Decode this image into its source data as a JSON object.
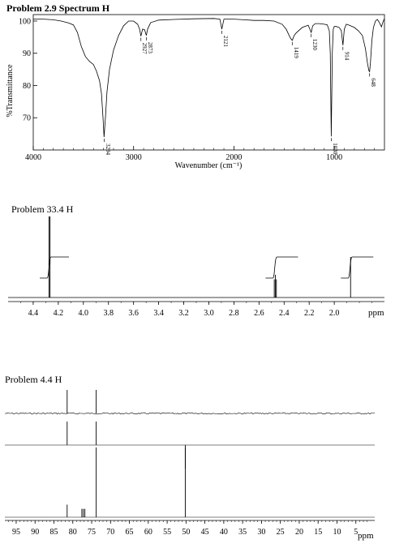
{
  "chart_data": [
    {
      "type": "line",
      "title": "Problem 2.9 Spectrum H",
      "xlabel": "Wavenumber (cm⁻¹)",
      "ylabel": "%Transmittance",
      "xlim": [
        4000,
        500
      ],
      "ylim": [
        60,
        102
      ],
      "x_ticks": [
        4000,
        3000,
        2000,
        1000
      ],
      "y_ticks": [
        100,
        90,
        80,
        70
      ],
      "grid": false,
      "series": [
        {
          "x": [
            4000,
            3900,
            3800,
            3720,
            3650,
            3600,
            3560,
            3520,
            3480,
            3440,
            3400,
            3370,
            3340,
            3320,
            3305,
            3294,
            3280,
            3265,
            3240,
            3200,
            3150,
            3100,
            3050,
            3000,
            2960,
            2940,
            2927,
            2910,
            2890,
            2873,
            2860,
            2830,
            2750,
            2600,
            2400,
            2200,
            2140,
            2121,
            2100,
            2000,
            1900,
            1800,
            1700,
            1600,
            1520,
            1480,
            1450,
            1435,
            1419,
            1400,
            1380,
            1320,
            1260,
            1240,
            1230,
            1215,
            1190,
            1150,
            1100,
            1070,
            1050,
            1040,
            1030,
            1020,
            1010,
            1000,
            980,
            950,
            930,
            914,
            900,
            880,
            850,
            800,
            760,
            720,
            690,
            670,
            655,
            648,
            640,
            625,
            610,
            590,
            570,
            550,
            530,
            520,
            505,
            500
          ],
          "y": [
            100.6,
            100.6,
            100.4,
            100.0,
            99.4,
            98.8,
            96.5,
            92,
            89,
            87.5,
            86.5,
            84.5,
            81.5,
            77.5,
            70,
            64,
            70.5,
            78,
            85,
            91,
            95.5,
            98.5,
            100,
            100,
            99,
            97.5,
            95.3,
            97.5,
            97.3,
            95.5,
            97.5,
            99.5,
            100.3,
            100.5,
            100.7,
            100.8,
            100.6,
            97.5,
            100.6,
            100.6,
            100.4,
            100.2,
            100.2,
            100,
            99,
            97.5,
            95.5,
            94.6,
            94.0,
            95.5,
            96.3,
            98,
            98.7,
            97.2,
            96.5,
            98.5,
            99.2,
            99.2,
            99,
            98.8,
            97,
            90,
            64.2,
            90,
            97.5,
            98.3,
            98.3,
            98,
            97,
            92.5,
            97.5,
            99,
            98.7,
            98,
            97,
            95.5,
            91.5,
            87,
            84.6,
            84.3,
            87,
            94,
            98,
            100,
            100.5,
            99.5,
            98.2,
            99.2,
            100.5,
            100.6
          ]
        }
      ],
      "annotations": [
        "3294",
        "2927",
        "2873",
        "2121",
        "1419",
        "1230",
        "1030",
        "914",
        "648"
      ]
    },
    {
      "type": "line",
      "title": "Problem 33.4 H",
      "xlabel": "ppm",
      "xlim": [
        4.6,
        1.6
      ],
      "x_ticks": [
        4.4,
        4.2,
        4.0,
        3.8,
        3.6,
        3.4,
        3.2,
        3.0,
        2.8,
        2.6,
        2.4,
        2.2,
        2.0
      ],
      "peaks": [
        {
          "ppm": 4.27,
          "multiplicity": "d",
          "integral": 2
        },
        {
          "ppm": 2.47,
          "multiplicity": "t",
          "integral": 1
        },
        {
          "ppm": 1.87,
          "multiplicity": "s",
          "integral": 1
        }
      ]
    },
    {
      "type": "line",
      "title": "Problem 4.4 H",
      "xlabel": "ppm",
      "xlim": [
        98,
        0
      ],
      "x_ticks": [
        95,
        90,
        85,
        80,
        75,
        70,
        65,
        60,
        55,
        50,
        45,
        40,
        35,
        30,
        25,
        20,
        15,
        10,
        5
      ],
      "spectra": [
        {
          "peaks": [
            {
              "ppm": 81.5,
              "height": 1.0
            },
            {
              "ppm": 73.8,
              "height": 1.0
            }
          ]
        },
        {
          "peaks": [
            {
              "ppm": 81.5,
              "height": 1.0,
              "sign": "up"
            },
            {
              "ppm": 73.8,
              "height": 1.0,
              "sign": "up"
            },
            {
              "ppm": 50.2,
              "height": 1.0,
              "sign": "down"
            }
          ]
        },
        {
          "peaks": [
            {
              "ppm": 81.5,
              "height": 0.18
            },
            {
              "ppm": 77.6,
              "height": 0.12
            },
            {
              "ppm": 77.2,
              "height": 0.12
            },
            {
              "ppm": 76.8,
              "height": 0.12
            },
            {
              "ppm": 73.8,
              "height": 1.0
            },
            {
              "ppm": 50.2,
              "height": 1.0
            }
          ]
        }
      ]
    }
  ]
}
